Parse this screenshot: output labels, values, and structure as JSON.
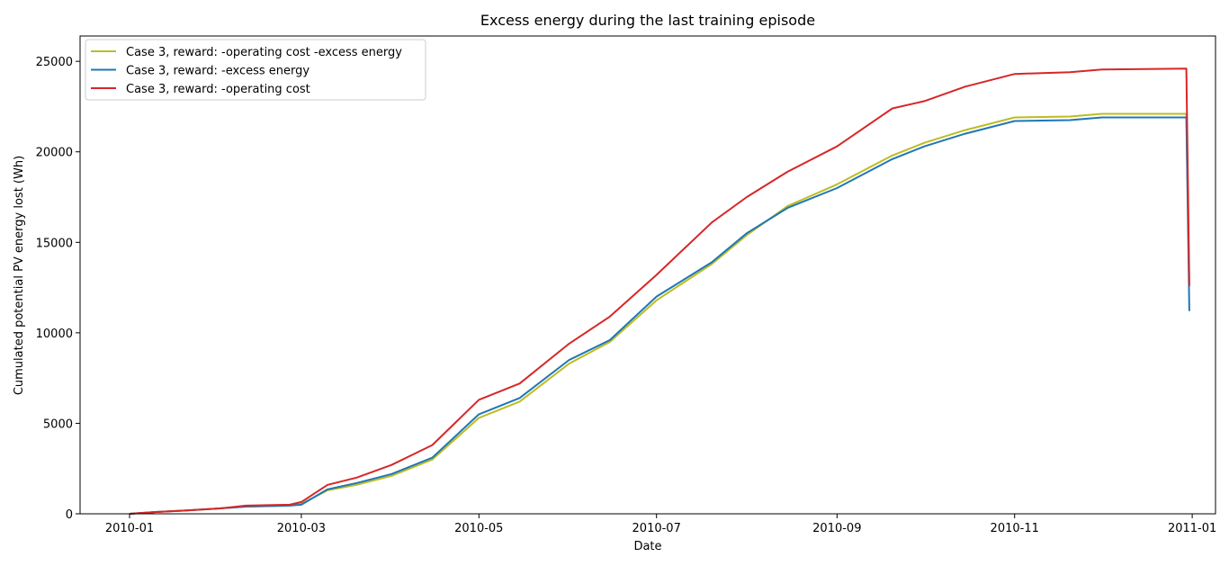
{
  "chart_data": {
    "type": "line",
    "title": "Excess energy during the last training episode",
    "xlabel": "Date",
    "ylabel": "Cumulated potential PV energy lost (Wh)",
    "x_axis_type": "date",
    "xlim": [
      "2009-12-15",
      "2011-01-09"
    ],
    "ylim": [
      0,
      26400
    ],
    "x_ticks": [
      {
        "date": "2010-01-01",
        "label": "2010-01"
      },
      {
        "date": "2010-03-01",
        "label": "2010-03"
      },
      {
        "date": "2010-05-01",
        "label": "2010-05"
      },
      {
        "date": "2010-07-01",
        "label": "2010-07"
      },
      {
        "date": "2010-09-01",
        "label": "2010-09"
      },
      {
        "date": "2010-11-01",
        "label": "2010-11"
      },
      {
        "date": "2011-01-01",
        "label": "2011-01"
      }
    ],
    "y_ticks": [
      0,
      5000,
      10000,
      15000,
      20000,
      25000
    ],
    "grid": false,
    "legend_position": "top-left",
    "x": [
      "2010-01-01",
      "2010-01-10",
      "2010-01-20",
      "2010-02-01",
      "2010-02-10",
      "2010-02-25",
      "2010-03-01",
      "2010-03-10",
      "2010-03-20",
      "2010-04-01",
      "2010-04-15",
      "2010-05-01",
      "2010-05-15",
      "2010-06-01",
      "2010-06-15",
      "2010-07-01",
      "2010-07-20",
      "2010-08-01",
      "2010-08-15",
      "2010-09-01",
      "2010-09-20",
      "2010-10-01",
      "2010-10-15",
      "2010-11-01",
      "2010-11-20",
      "2010-12-01",
      "2010-12-30",
      "2010-12-31"
    ],
    "series": [
      {
        "name": "Case 3, reward: -operating cost -excess energy",
        "color": "#bcbd22",
        "values": [
          0,
          100,
          180,
          300,
          400,
          450,
          550,
          1300,
          1600,
          2100,
          3000,
          5300,
          6200,
          8300,
          9500,
          11800,
          13800,
          15400,
          17000,
          18200,
          19800,
          20500,
          21200,
          21900,
          21950,
          22100,
          22100,
          12600
        ]
      },
      {
        "name": "Case 3, reward: -excess energy",
        "color": "#1f77b4",
        "values": [
          0,
          100,
          180,
          300,
          400,
          450,
          500,
          1350,
          1700,
          2200,
          3100,
          5500,
          6400,
          8500,
          9600,
          12000,
          13900,
          15500,
          16900,
          18000,
          19600,
          20300,
          21000,
          21700,
          21750,
          21900,
          21900,
          11200
        ]
      },
      {
        "name": "Case 3, reward: -operating cost",
        "color": "#d62728",
        "values": [
          0,
          100,
          180,
          300,
          450,
          500,
          650,
          1600,
          2000,
          2700,
          3800,
          6300,
          7200,
          9400,
          10900,
          13200,
          16100,
          17500,
          18900,
          20300,
          22400,
          22800,
          23600,
          24300,
          24400,
          24550,
          24600,
          12600
        ]
      }
    ]
  }
}
